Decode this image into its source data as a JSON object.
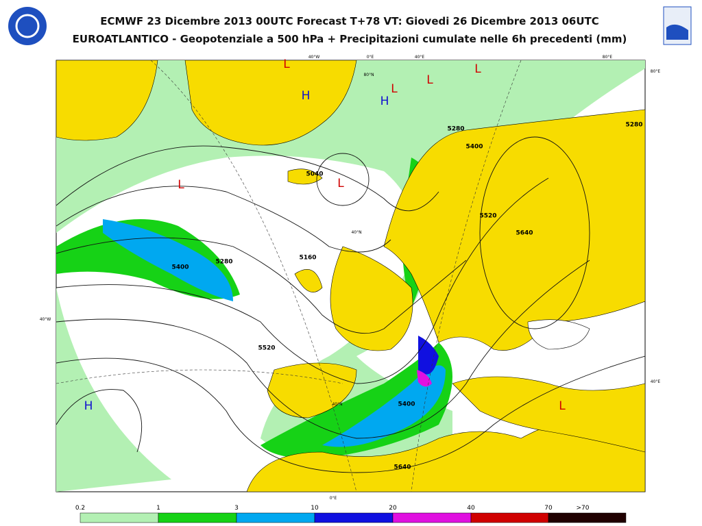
{
  "header": {
    "title": "ECMWF 23 Dicembre 2013 00UTC Forecast T+78 VT: Giovedi 26 Dicembre 2013 06UTC",
    "subtitle": "EUROATLANTICO - Geopotenziale a 500 hPa + Precipitazioni cumulate nelle 6h precedenti (mm)"
  },
  "map": {
    "centers": [
      "L",
      "L",
      "L",
      "L",
      "L",
      "L",
      "L",
      "H",
      "H",
      "H"
    ],
    "contour_labels": [
      "5280",
      "5400",
      "5280",
      "5160",
      "5040",
      "5520",
      "5400",
      "5640",
      "5400",
      "5520",
      "5640",
      "5280"
    ],
    "graticule_labels": [
      "40°W",
      "0°E",
      "40°E",
      "80°E",
      "80°E",
      "80°N",
      "40°N",
      "40°W",
      "40°N",
      "40°E",
      "0°E"
    ]
  },
  "legend": {
    "labels": [
      "0.2",
      "1",
      "3",
      "10",
      "20",
      "40",
      "70",
      ">70"
    ]
  }
}
